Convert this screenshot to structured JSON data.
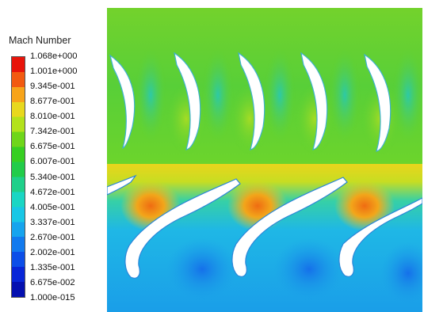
{
  "legend": {
    "title": "Mach Number",
    "ticks": [
      "1.068e+000",
      "1.001e+000",
      "9.345e-001",
      "8.677e-001",
      "8.010e-001",
      "7.342e-001",
      "6.675e-001",
      "6.007e-001",
      "5.340e-001",
      "4.672e-001",
      "4.005e-001",
      "3.337e-001",
      "2.670e-001",
      "2.002e-001",
      "1.335e-001",
      "6.675e-002",
      "1.000e-015"
    ],
    "colors": [
      "#e8140a",
      "#f25a10",
      "#f7a41a",
      "#e8d81e",
      "#b3e21c",
      "#6fd61a",
      "#37cf22",
      "#22cc4a",
      "#1fd08a",
      "#1ad6c4",
      "#18c7e6",
      "#16a4ee",
      "#127aee",
      "#0c4ee8",
      "#0826d8",
      "#0410b0"
    ]
  },
  "plot": {
    "top_colors": {
      "background": "#5fd134",
      "mid": "#2fcd5c",
      "light": "#93db2c",
      "near_wall": "#27c6c2"
    },
    "bottom_colors": {
      "background": "#1fb3e6",
      "deep": "#1a90ea",
      "teal": "#1fd3b0",
      "warm": "#f0c81e",
      "hot": "#ec7a14"
    }
  }
}
